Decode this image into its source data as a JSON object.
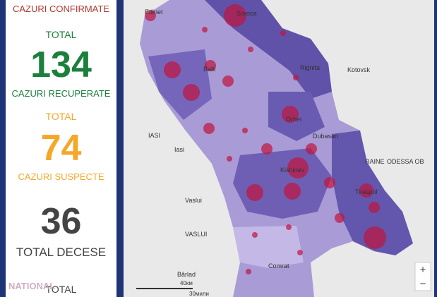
{
  "panel": {
    "heading": "CAZURI CONFIRMATE",
    "stats": [
      {
        "label_top": "TOTAL",
        "value": "134",
        "label_bottom": "CAZURI RECUPERATE"
      },
      {
        "label_top": "TOTAL",
        "value": "74",
        "label_bottom": "CAZURI SUSPECTE"
      },
      {
        "value": "36",
        "label_bottom": "TOTAL DECESE"
      }
    ],
    "footer": "TOTAL",
    "watermark": "NATIONAL"
  },
  "map": {
    "labels": [
      "Edinet",
      "Soroca",
      "Balti",
      "Rignita",
      "Kotovsk",
      "IASI",
      "Iasi",
      "Orhei",
      "Dubasari",
      "Kishinev",
      "Tiraspol",
      "ODESSA OB",
      "RAINE",
      "Vaslui",
      "VASLUI",
      "Bârlad",
      "Comrat"
    ],
    "scale": [
      "40км",
      "30мили"
    ],
    "zoom": [
      "+",
      "−"
    ]
  }
}
